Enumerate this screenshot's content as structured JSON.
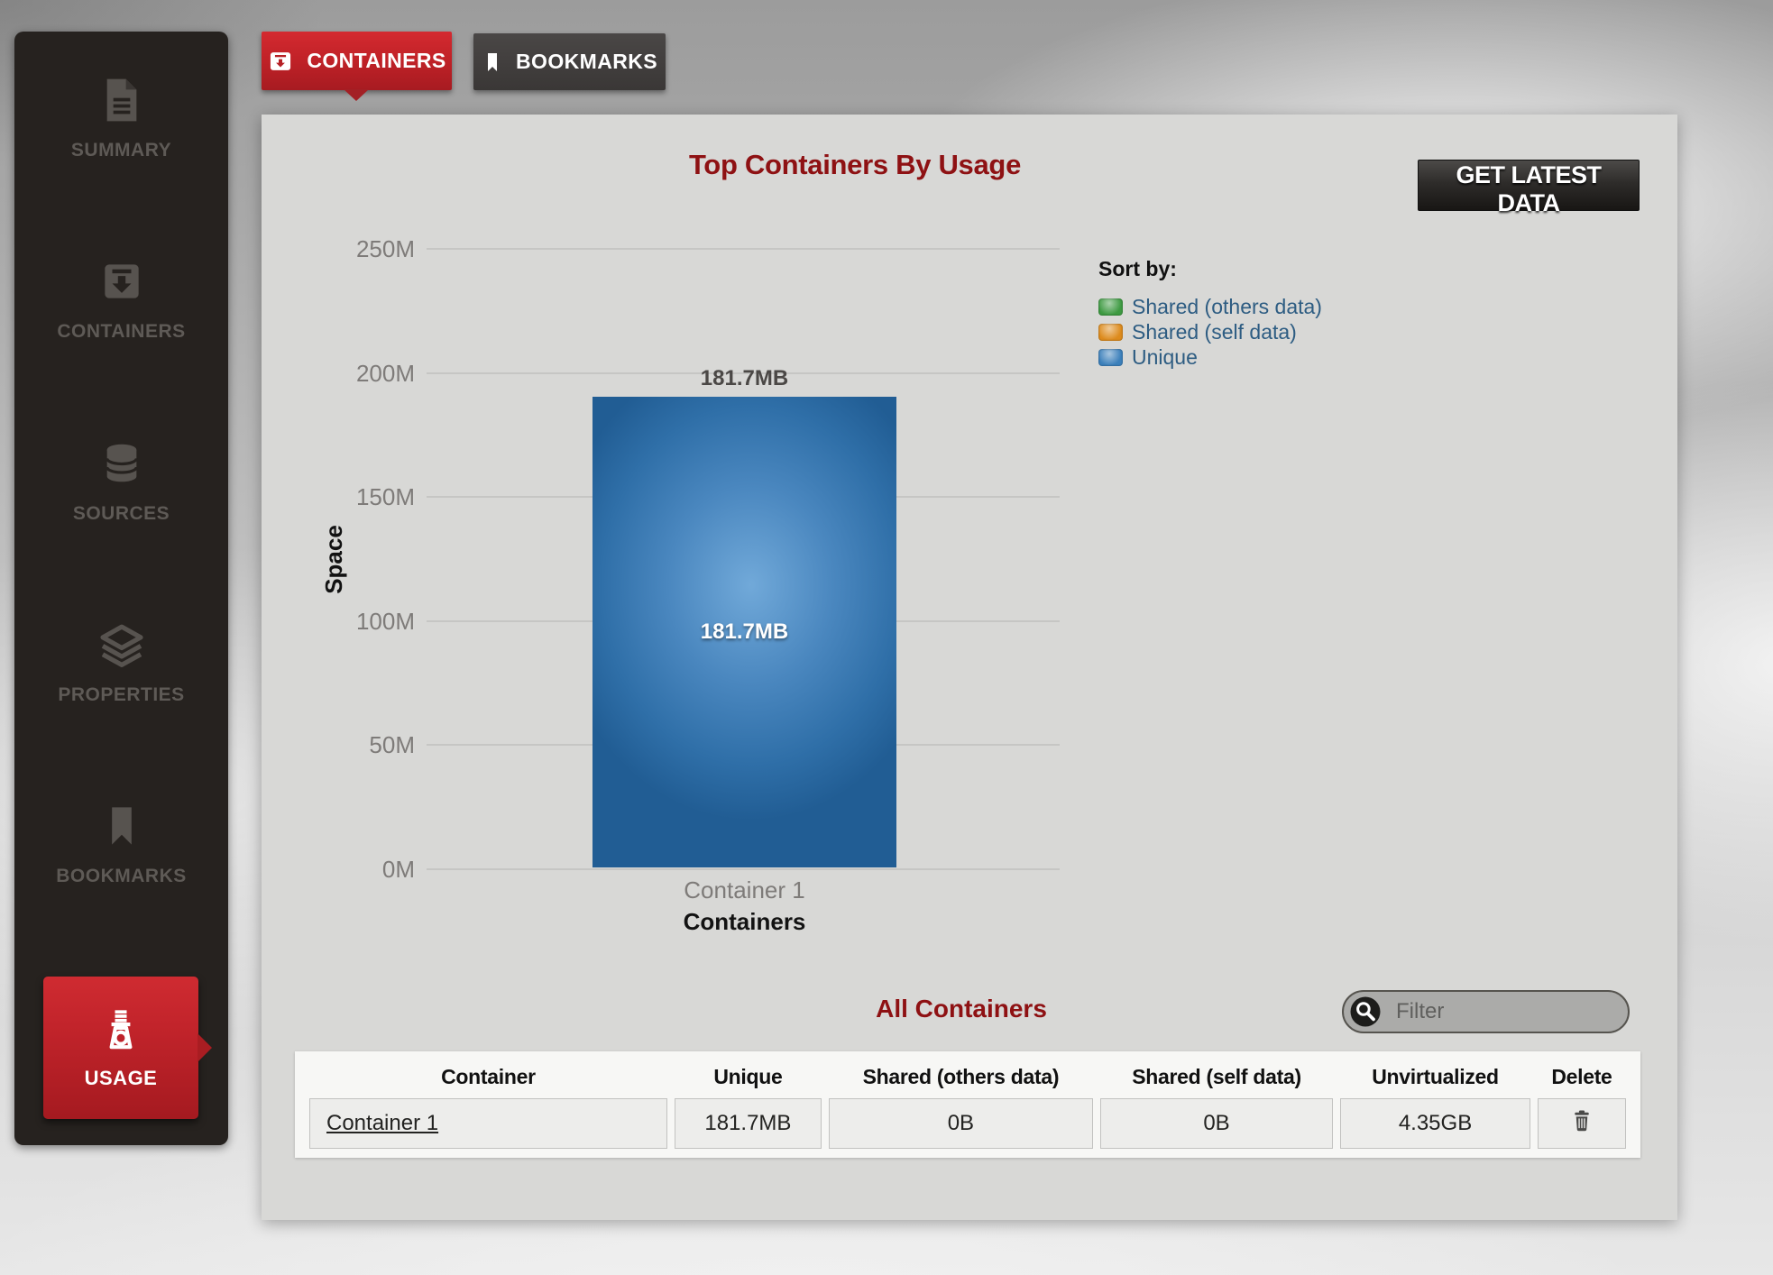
{
  "sidebar": {
    "items": [
      {
        "label": "SUMMARY"
      },
      {
        "label": "CONTAINERS"
      },
      {
        "label": "SOURCES"
      },
      {
        "label": "PROPERTIES"
      },
      {
        "label": "BOOKMARKS"
      },
      {
        "label": "USAGE",
        "active": true
      }
    ]
  },
  "tabs": {
    "containers": "CONTAINERS",
    "bookmarks": "BOOKMARKS"
  },
  "toolbar": {
    "get_latest_label": "GET LATEST DATA"
  },
  "chart": {
    "title": "Top Containers By Usage",
    "bar_top_label": "181.7MB",
    "bar_inner_label": "181.7MB",
    "x_tick": "Container 1",
    "x_axis_label": "Containers",
    "y_axis_label": "Space",
    "legend_title": "Sort by:",
    "legend": [
      {
        "label": "Shared (others data)",
        "color": "#3e9a42"
      },
      {
        "label": "Shared (self data)",
        "color": "#dd8b1d"
      },
      {
        "label": "Unique",
        "color": "#3c80bb"
      }
    ]
  },
  "chart_data": {
    "type": "bar",
    "stacked": true,
    "categories": [
      "Container 1"
    ],
    "series": [
      {
        "name": "Shared (others data)",
        "color": "#3e9a42",
        "values": [
          0
        ]
      },
      {
        "name": "Shared (self data)",
        "color": "#dd8b1d",
        "values": [
          0
        ]
      },
      {
        "name": "Unique",
        "color": "#3c80bb",
        "values": [
          190.5
        ]
      }
    ],
    "value_labels": [
      "181.7MB"
    ],
    "title": "Top Containers By Usage",
    "xlabel": "Containers",
    "ylabel": "Space",
    "ylim": [
      0,
      250
    ],
    "yticks": [
      "0M",
      "50M",
      "100M",
      "150M",
      "200M",
      "250M"
    ],
    "grid": true,
    "legend_title": "Sort by:",
    "legend_position": "right"
  },
  "all_containers": {
    "title": "All Containers",
    "filter_placeholder": "Filter",
    "table": {
      "columns": [
        "Container",
        "Unique",
        "Shared (others data)",
        "Shared (self data)",
        "Unvirtualized",
        "Delete"
      ],
      "rows": [
        {
          "cells": [
            "Container 1",
            "181.7MB",
            "0B",
            "0B",
            "4.35GB"
          ]
        }
      ]
    }
  }
}
